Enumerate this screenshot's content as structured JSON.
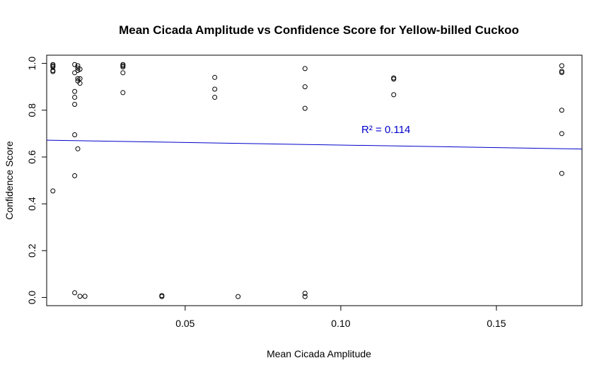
{
  "chart_data": {
    "type": "scatter",
    "title": "Mean Cicada Amplitude vs Confidence Score for Yellow-billed Cuckoo",
    "xlabel": "Mean Cicada Amplitude",
    "ylabel": "Confidence Score",
    "xlim": [
      0.0055,
      0.1775
    ],
    "ylim": [
      -0.035,
      1.035
    ],
    "x_ticks": [
      0.05,
      0.1,
      0.15
    ],
    "x_tick_labels": [
      "0.05",
      "0.10",
      "0.15"
    ],
    "y_ticks": [
      0.0,
      0.2,
      0.4,
      0.6,
      0.8,
      1.0
    ],
    "y_tick_labels": [
      "0.0",
      "0.2",
      "0.4",
      "0.6",
      "0.8",
      "1.0"
    ],
    "grid": false,
    "series": [
      {
        "marker": "open-circle",
        "color": "#000000",
        "points": [
          [
            0.0075,
            0.995
          ],
          [
            0.0075,
            0.99
          ],
          [
            0.0075,
            0.985
          ],
          [
            0.0075,
            0.97
          ],
          [
            0.0075,
            0.965
          ],
          [
            0.0075,
            0.455
          ],
          [
            0.0145,
            0.995
          ],
          [
            0.0145,
            0.96
          ],
          [
            0.0145,
            0.88
          ],
          [
            0.0145,
            0.855
          ],
          [
            0.0145,
            0.825
          ],
          [
            0.0145,
            0.695
          ],
          [
            0.0145,
            0.52
          ],
          [
            0.0145,
            0.02
          ],
          [
            0.0155,
            0.99
          ],
          [
            0.0155,
            0.98
          ],
          [
            0.0155,
            0.97
          ],
          [
            0.0155,
            0.935
          ],
          [
            0.0155,
            0.925
          ],
          [
            0.0155,
            0.635
          ],
          [
            0.0162,
            0.975
          ],
          [
            0.0162,
            0.935
          ],
          [
            0.0162,
            0.915
          ],
          [
            0.0162,
            0.005
          ],
          [
            0.0178,
            0.005
          ],
          [
            0.03,
            0.995
          ],
          [
            0.03,
            0.99
          ],
          [
            0.03,
            0.985
          ],
          [
            0.03,
            0.96
          ],
          [
            0.03,
            0.875
          ],
          [
            0.0425,
            0.008
          ],
          [
            0.0425,
            0.004
          ],
          [
            0.0595,
            0.94
          ],
          [
            0.0595,
            0.89
          ],
          [
            0.0595,
            0.855
          ],
          [
            0.067,
            0.004
          ],
          [
            0.0885,
            0.978
          ],
          [
            0.0885,
            0.9
          ],
          [
            0.0885,
            0.808
          ],
          [
            0.0885,
            0.018
          ],
          [
            0.0885,
            0.004
          ],
          [
            0.117,
            0.938
          ],
          [
            0.117,
            0.933
          ],
          [
            0.117,
            0.866
          ],
          [
            0.171,
            0.99
          ],
          [
            0.171,
            0.966
          ],
          [
            0.171,
            0.961
          ],
          [
            0.171,
            0.8
          ],
          [
            0.171,
            0.7
          ],
          [
            0.171,
            0.53
          ]
        ]
      }
    ],
    "trendline": {
      "color": "#0000cc",
      "x": [
        0.0055,
        0.1775
      ],
      "y": [
        0.672,
        0.634
      ]
    },
    "annotation": {
      "text": "R² = 0.114",
      "x": 0.1145,
      "y": 0.702,
      "color": "#0000cc"
    }
  }
}
